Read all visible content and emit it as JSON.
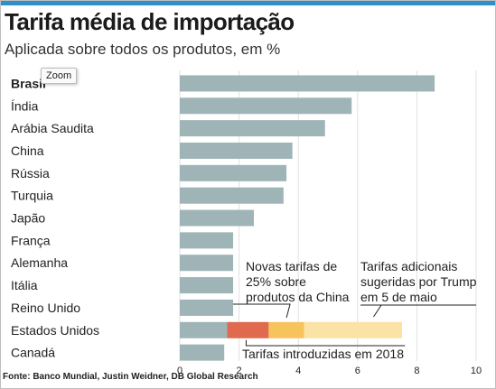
{
  "title": "Tarifa média de importação",
  "subtitle": "Aplicada sobre todos os produtos, em %",
  "source": "Fonte: Banco Mundial, Justin Weidner, DB Global Research",
  "tooltip": "Zoom",
  "colors": {
    "accent_bar": "#2f8fcb",
    "bar": "#9fb4b6",
    "grid": "#e2e2e2",
    "us_2018": "#e06a4e",
    "us_china": "#f7c35d",
    "us_trump": "#fbe3a6"
  },
  "chart_data": {
    "type": "bar",
    "orientation": "horizontal",
    "categories": [
      "Brasil",
      "Índia",
      "Arábia Saudita",
      "China",
      "Rússia",
      "Turquia",
      "Japão",
      "França",
      "Alemanha",
      "Itália",
      "Reino Unido",
      "Estados Unidos",
      "Canadá"
    ],
    "highlight_category": "Brasil",
    "values": [
      8.6,
      5.8,
      4.9,
      3.8,
      3.6,
      3.5,
      2.5,
      1.8,
      1.8,
      1.8,
      1.8,
      1.6,
      1.5
    ],
    "us_stack": [
      {
        "label": "Tarifas introduzidas em 2018",
        "start": 1.6,
        "end": 3.0
      },
      {
        "label": "Novas tarifas de\n25% sobre\nprodutos da China",
        "start": 3.0,
        "end": 4.2
      },
      {
        "label": "Tarifas adicionais\nsugeridas por Trump\nem 5 de maio",
        "start": 4.2,
        "end": 7.5
      }
    ],
    "xlim": [
      0,
      10
    ],
    "xticks": [
      0,
      2,
      4,
      6,
      8,
      10
    ],
    "grid": true,
    "xlabel": "",
    "ylabel": ""
  }
}
